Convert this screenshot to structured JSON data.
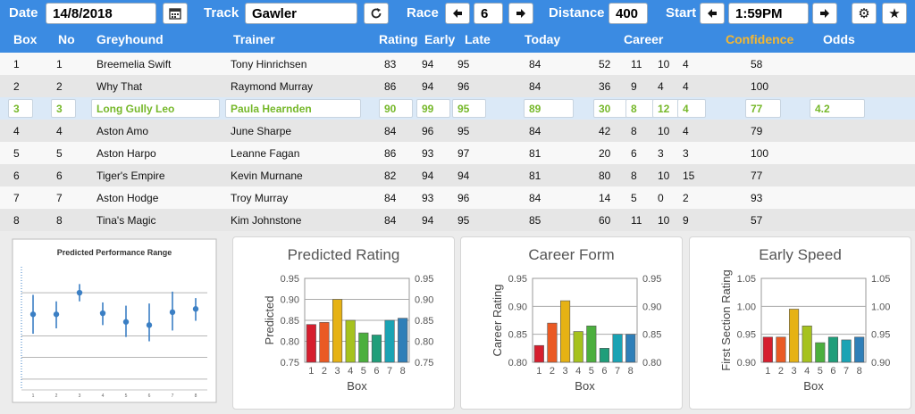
{
  "topbar": {
    "date_label": "Date",
    "date_value": "14/8/2018",
    "track_label": "Track",
    "track_value": "Gawler",
    "race_label": "Race",
    "race_value": "6",
    "distance_label": "Distance",
    "distance_value": "400",
    "start_label": "Start",
    "start_value": "1:59PM",
    "icons": [
      "calendar-icon",
      "refresh-icon",
      "arrow-left-icon",
      "arrow-right-icon",
      "gear-icon",
      "star-icon"
    ]
  },
  "table": {
    "headers": [
      "Box",
      "No",
      "Greyhound",
      "Trainer",
      "Rating",
      "Early",
      "Late",
      "Today",
      "Career",
      "Confidence",
      "Odds"
    ],
    "confidence_color": "#f5b731",
    "highlight_color": "#76b82a",
    "rows": [
      {
        "box": "1",
        "no": "1",
        "greyhound": "Breemelia Swift",
        "trainer": "Tony Hinrichsen",
        "rating": "83",
        "early": "94",
        "late": "95",
        "today": "84",
        "c1": "52",
        "c2": "11",
        "c3": "10",
        "c4": "4",
        "confidence": "58",
        "odds": ""
      },
      {
        "box": "2",
        "no": "2",
        "greyhound": "Why That",
        "trainer": "Raymond Murray",
        "rating": "86",
        "early": "94",
        "late": "96",
        "today": "84",
        "c1": "36",
        "c2": "9",
        "c3": "4",
        "c4": "4",
        "confidence": "100",
        "odds": ""
      },
      {
        "box": "3",
        "no": "3",
        "greyhound": "Long Gully Leo",
        "trainer": "Paula Hearnden",
        "rating": "90",
        "early": "99",
        "late": "95",
        "today": "89",
        "c1": "30",
        "c2": "8",
        "c3": "12",
        "c4": "4",
        "confidence": "77",
        "odds": "4.2"
      },
      {
        "box": "4",
        "no": "4",
        "greyhound": "Aston Amo",
        "trainer": "June Sharpe",
        "rating": "84",
        "early": "96",
        "late": "95",
        "today": "84",
        "c1": "42",
        "c2": "8",
        "c3": "10",
        "c4": "4",
        "confidence": "79",
        "odds": ""
      },
      {
        "box": "5",
        "no": "5",
        "greyhound": "Aston Harpo",
        "trainer": "Leanne Fagan",
        "rating": "86",
        "early": "93",
        "late": "97",
        "today": "81",
        "c1": "20",
        "c2": "6",
        "c3": "3",
        "c4": "3",
        "confidence": "100",
        "odds": ""
      },
      {
        "box": "6",
        "no": "6",
        "greyhound": "Tiger's Empire",
        "trainer": "Kevin Murnane",
        "rating": "82",
        "early": "94",
        "late": "94",
        "today": "81",
        "c1": "80",
        "c2": "8",
        "c3": "10",
        "c4": "15",
        "confidence": "77",
        "odds": ""
      },
      {
        "box": "7",
        "no": "7",
        "greyhound": "Aston Hodge",
        "trainer": "Troy Murray",
        "rating": "84",
        "early": "93",
        "late": "96",
        "today": "84",
        "c1": "14",
        "c2": "5",
        "c3": "0",
        "c4": "2",
        "confidence": "93",
        "odds": ""
      },
      {
        "box": "8",
        "no": "8",
        "greyhound": "Tina's Magic",
        "trainer": "Kim Johnstone",
        "rating": "84",
        "early": "94",
        "late": "95",
        "today": "85",
        "c1": "60",
        "c2": "11",
        "c3": "10",
        "c4": "9",
        "confidence": "57",
        "odds": ""
      }
    ]
  },
  "chart_data": [
    {
      "type": "scatter",
      "title": "Predicted Performance Range",
      "x": [
        1,
        2,
        3,
        4,
        5,
        6,
        7,
        8
      ],
      "y": [
        0.0,
        0.0,
        1.0,
        0.05,
        -0.35,
        -0.5,
        0.1,
        0.25
      ],
      "y_low": [
        -0.9,
        -0.65,
        0.6,
        -0.5,
        -1.05,
        -1.25,
        -0.75,
        -0.3
      ],
      "y_high": [
        0.9,
        0.6,
        1.4,
        0.55,
        0.4,
        0.5,
        1.05,
        0.75
      ],
      "ylim": [
        -3.5,
        2.2
      ],
      "marker_color": "#3b7fc4"
    },
    {
      "type": "bar",
      "title": "Predicted Rating",
      "xlabel": "Box",
      "ylabel": "Predicted",
      "categories": [
        "1",
        "2",
        "3",
        "4",
        "5",
        "6",
        "7",
        "8"
      ],
      "values": [
        0.84,
        0.845,
        0.9,
        0.85,
        0.82,
        0.815,
        0.85,
        0.855
      ],
      "ylim": [
        0.75,
        0.95
      ],
      "yticks": [
        "0.95",
        "0.90",
        "0.85",
        "0.80",
        "0.75"
      ],
      "colors": [
        "#d61e2e",
        "#ea5a24",
        "#e6b214",
        "#a6c21e",
        "#4caf3e",
        "#1f9e7a",
        "#1aa3b4",
        "#2f7fb8"
      ]
    },
    {
      "type": "bar",
      "title": "Career Form",
      "xlabel": "Box",
      "ylabel": "Career Rating",
      "categories": [
        "1",
        "2",
        "3",
        "4",
        "5",
        "6",
        "7",
        "8"
      ],
      "values": [
        0.83,
        0.87,
        0.91,
        0.855,
        0.865,
        0.825,
        0.85,
        0.85
      ],
      "ylim": [
        0.8,
        0.95
      ],
      "yticks": [
        "0.95",
        "0.90",
        "0.85",
        "0.80"
      ],
      "colors": [
        "#d61e2e",
        "#ea5a24",
        "#e6b214",
        "#a6c21e",
        "#4caf3e",
        "#1f9e7a",
        "#1aa3b4",
        "#2f7fb8"
      ]
    },
    {
      "type": "bar",
      "title": "Early Speed",
      "xlabel": "Box",
      "ylabel": "First Section Rating",
      "categories": [
        "1",
        "2",
        "3",
        "4",
        "5",
        "6",
        "7",
        "8"
      ],
      "values": [
        0.945,
        0.945,
        0.995,
        0.965,
        0.935,
        0.945,
        0.94,
        0.945
      ],
      "ylim": [
        0.9,
        1.05
      ],
      "yticks": [
        "1.05",
        "1.00",
        "0.95",
        "0.90"
      ],
      "colors": [
        "#d61e2e",
        "#ea5a24",
        "#e6b214",
        "#a6c21e",
        "#4caf3e",
        "#1f9e7a",
        "#1aa3b4",
        "#2f7fb8"
      ]
    }
  ]
}
